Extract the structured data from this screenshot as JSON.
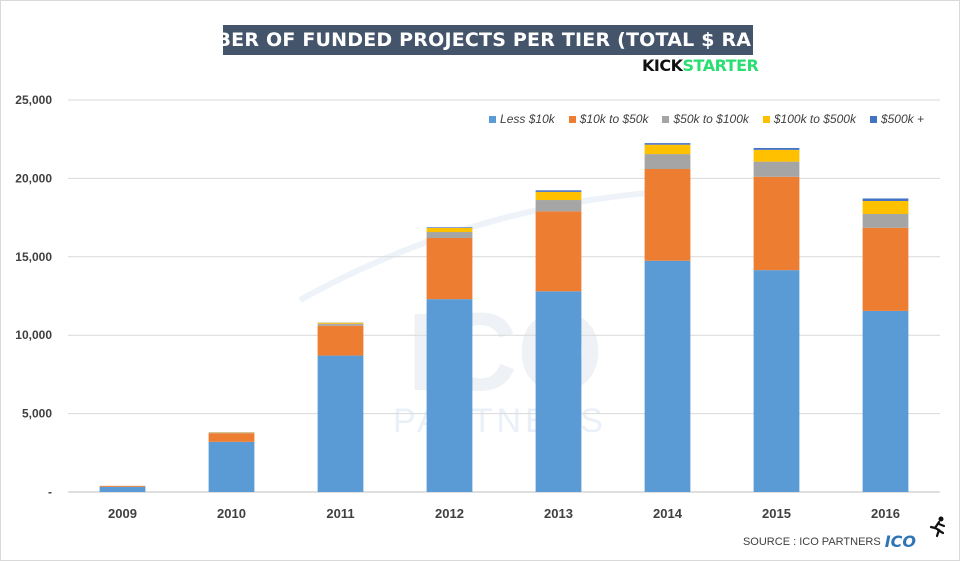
{
  "header": {
    "title": "NUMBER OF FUNDED PROJECTS PER TIER (TOTAL $ RAISED)",
    "logo_part1": "KICK",
    "logo_part2": "STARTER",
    "watermark_line1": "ICO",
    "watermark_line2": "PARTNERS"
  },
  "footer": {
    "source": "SOURCE : ICO PARTNERS",
    "source_logo": "ICO"
  },
  "chart_data": {
    "type": "bar",
    "stacked": true,
    "title": "NUMBER OF FUNDED PROJECTS PER TIER (TOTAL $ RAISED)",
    "categories": [
      "2009",
      "2010",
      "2011",
      "2012",
      "2013",
      "2014",
      "2015",
      "2016"
    ],
    "series": [
      {
        "name": "Less $10k",
        "color": "#5b9bd5",
        "values": [
          330,
          3200,
          8700,
          12300,
          12800,
          14750,
          14150,
          11550
        ]
      },
      {
        "name": "$10k to $50k",
        "color": "#ed7d31",
        "values": [
          60,
          550,
          1900,
          3900,
          5100,
          5850,
          5950,
          5300
        ]
      },
      {
        "name": "$50k to $100k",
        "color": "#a5a5a5",
        "values": [
          5,
          40,
          130,
          380,
          720,
          950,
          970,
          880
        ]
      },
      {
        "name": "$100k to $500k",
        "color": "#ffc000",
        "values": [
          2,
          20,
          70,
          260,
          520,
          600,
          750,
          830
        ]
      },
      {
        "name": "$500k +",
        "color": "#4472c4",
        "values": [
          0,
          3,
          10,
          40,
          100,
          100,
          120,
          160
        ]
      }
    ],
    "ylim": [
      0,
      25000
    ],
    "yticks": [
      0,
      5000,
      10000,
      15000,
      20000,
      25000
    ],
    "ytick_labels": [
      "-",
      "5,000",
      "10,000",
      "15,000",
      "20,000",
      "25,000"
    ],
    "xlabel": "",
    "ylabel": "",
    "grid": true,
    "legend_position": "top-right"
  }
}
